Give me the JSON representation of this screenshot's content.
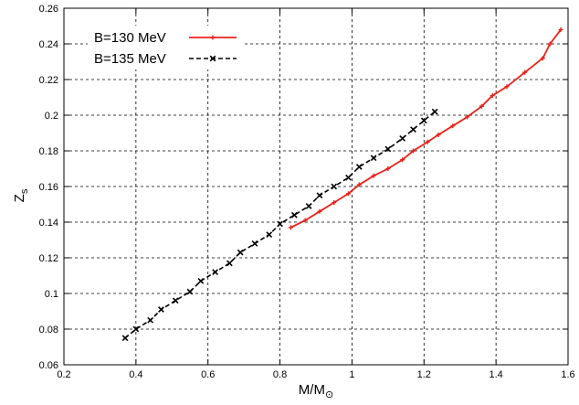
{
  "chart_data": {
    "type": "line",
    "title": "",
    "xlabel": "M/M",
    "xlabel_sub": "⊙",
    "ylabel": "Z",
    "ylabel_sub": "s",
    "xlim": [
      0.2,
      1.6
    ],
    "ylim": [
      0.06,
      0.26
    ],
    "xticks": [
      0.2,
      0.4,
      0.6,
      0.8,
      1,
      1.2,
      1.4,
      1.6
    ],
    "xtick_labels": [
      "0.2",
      "0.4",
      "0.6",
      "0.8",
      "1",
      "1.2",
      "1.4",
      "1.6"
    ],
    "yticks": [
      0.06,
      0.08,
      0.1,
      0.12,
      0.14,
      0.16,
      0.18,
      0.2,
      0.22,
      0.24,
      0.26
    ],
    "ytick_labels": [
      "0.06",
      "0.08",
      "0.1",
      "0.12",
      "0.14",
      "0.16",
      "0.18",
      "0.2",
      "0.22",
      "0.24",
      "0.26"
    ],
    "grid": true,
    "legend_position": "top-left",
    "series": [
      {
        "name": "B=130 MeV",
        "color": "#e8221b",
        "line_style": "solid",
        "marker": "plus",
        "x": [
          0.83,
          0.87,
          0.91,
          0.95,
          0.99,
          1.02,
          1.06,
          1.1,
          1.14,
          1.17,
          1.21,
          1.24,
          1.28,
          1.32,
          1.36,
          1.39,
          1.43,
          1.48,
          1.53,
          1.55,
          1.58
        ],
        "y": [
          0.137,
          0.141,
          0.146,
          0.151,
          0.156,
          0.161,
          0.166,
          0.17,
          0.175,
          0.18,
          0.185,
          0.189,
          0.194,
          0.199,
          0.205,
          0.211,
          0.216,
          0.224,
          0.232,
          0.24,
          0.248
        ]
      },
      {
        "name": "B=135 MeV",
        "color": "#000000",
        "line_style": "dashed",
        "marker": "cross",
        "x": [
          0.37,
          0.4,
          0.44,
          0.47,
          0.51,
          0.55,
          0.58,
          0.62,
          0.66,
          0.69,
          0.73,
          0.77,
          0.8,
          0.84,
          0.88,
          0.91,
          0.95,
          0.99,
          1.02,
          1.06,
          1.1,
          1.14,
          1.17,
          1.2,
          1.23
        ],
        "y": [
          0.075,
          0.08,
          0.085,
          0.091,
          0.096,
          0.101,
          0.107,
          0.112,
          0.117,
          0.123,
          0.128,
          0.133,
          0.139,
          0.144,
          0.149,
          0.155,
          0.16,
          0.165,
          0.171,
          0.176,
          0.181,
          0.187,
          0.192,
          0.197,
          0.202
        ]
      }
    ]
  }
}
